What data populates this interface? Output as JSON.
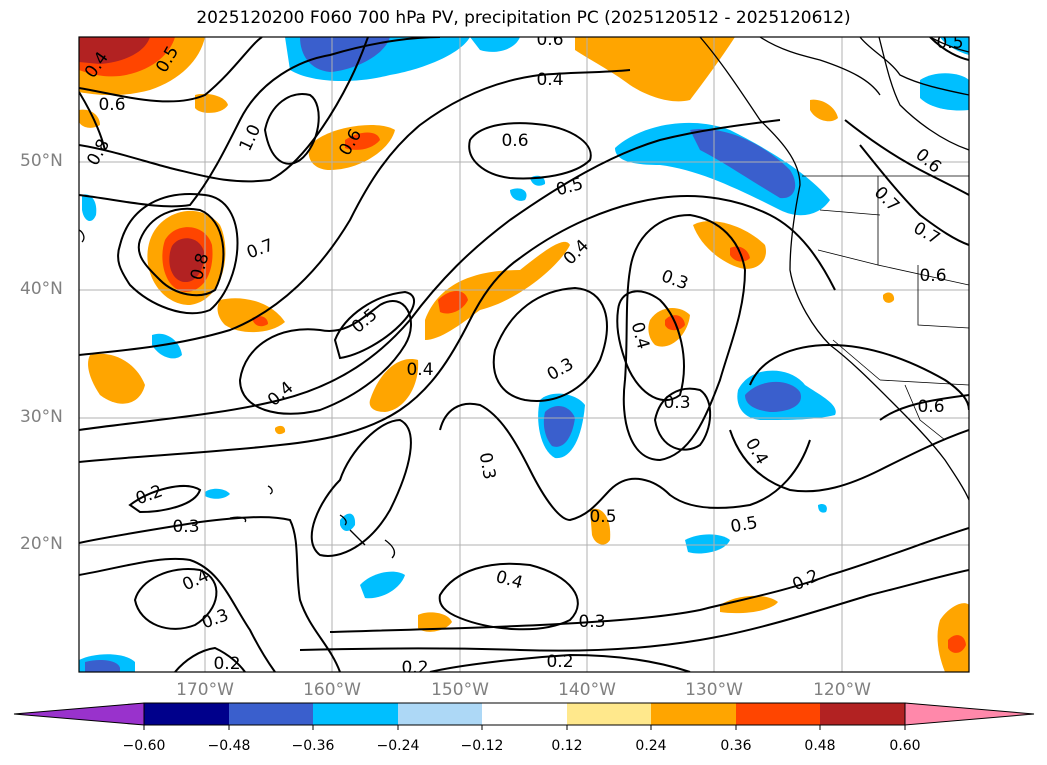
{
  "title": "2025120200 F060 700 hPa PV, precipitation PC (2025120512 - 2025120612)",
  "lat_labels": [
    "50°N",
    "40°N",
    "30°N",
    "20°N"
  ],
  "lon_labels": [
    "170°W",
    "160°W",
    "150°W",
    "140°W",
    "130°W",
    "120°W"
  ],
  "colorbar": {
    "colors": [
      "#9932cc",
      "#00008b",
      "#3a5fcd",
      "#00bfff",
      "#add8f6",
      "#ffffff",
      "#ffe88c",
      "#ffa500",
      "#ff4500",
      "#b22222",
      "#ff88aa"
    ],
    "tick_labels": [
      "−0.60",
      "−0.48",
      "−0.36",
      "−0.24",
      "−0.12",
      "0.12",
      "0.24",
      "0.36",
      "0.48",
      "0.60"
    ]
  },
  "contour_labels": [
    "0.4",
    "0.5",
    "0.6",
    "0.8",
    "1.0",
    "0.6",
    "0.8",
    "0.7",
    "0.5",
    "0.4",
    "0.6",
    "0.4",
    "0.6",
    "0.5",
    "0.4",
    "0.3",
    "0.4",
    "0.3",
    "0.3",
    "0.4",
    "0.3",
    "0.5",
    "0.5",
    "0.2",
    "0.4",
    "0.3",
    "0.2",
    "0.2",
    "0.2",
    "0.3",
    "0.4",
    "0.2",
    "0.3",
    "0.4",
    "0.6",
    "0.7",
    "0.7",
    "0.6",
    "0.6",
    "0.5"
  ],
  "colors": {
    "contour": "#000000",
    "grid": "#b0b0b0",
    "coast": "#000000"
  }
}
